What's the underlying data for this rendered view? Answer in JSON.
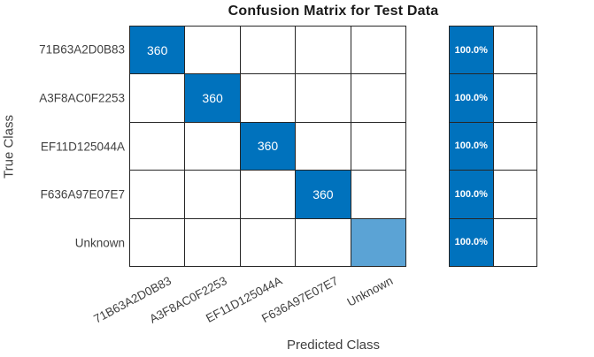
{
  "title": "Confusion Matrix for Test Data",
  "axes": {
    "xlabel": "Predicted Class",
    "ylabel": "True Class"
  },
  "chart_data": {
    "type": "heatmap",
    "subtype": "confusion_matrix",
    "title": "Confusion Matrix for Test Data",
    "xlabel": "Predicted Class",
    "ylabel": "True Class",
    "classes": [
      "71B63A2D0B83",
      "A3F8AC0F2253",
      "EF11D125044A",
      "F636A97E07E7",
      "Unknown"
    ],
    "matrix": [
      [
        360,
        null,
        null,
        null,
        null
      ],
      [
        null,
        360,
        null,
        null,
        null
      ],
      [
        null,
        null,
        360,
        null,
        null
      ],
      [
        null,
        null,
        null,
        360,
        null
      ],
      [
        null,
        null,
        null,
        null,
        null
      ]
    ],
    "diagonal_colors": [
      "#0072BD",
      "#0072BD",
      "#0072BD",
      "#0072BD",
      "#5BA3D5"
    ],
    "row_summary": {
      "values": [
        "100.0%",
        "100.0%",
        "100.0%",
        "100.0%",
        "100.0%"
      ],
      "fill_color": "#0072BD",
      "empty_color": "#FFFFFF"
    },
    "colors": {
      "grid_line": "#262626",
      "empty_cell": "#FFFFFF",
      "cell_text": "#FFFFFF",
      "tick_text": "#404040",
      "title_text": "#1A1A1A"
    },
    "layout_hints": {
      "grid": "on",
      "legend": "none",
      "summary_position": "right"
    }
  }
}
